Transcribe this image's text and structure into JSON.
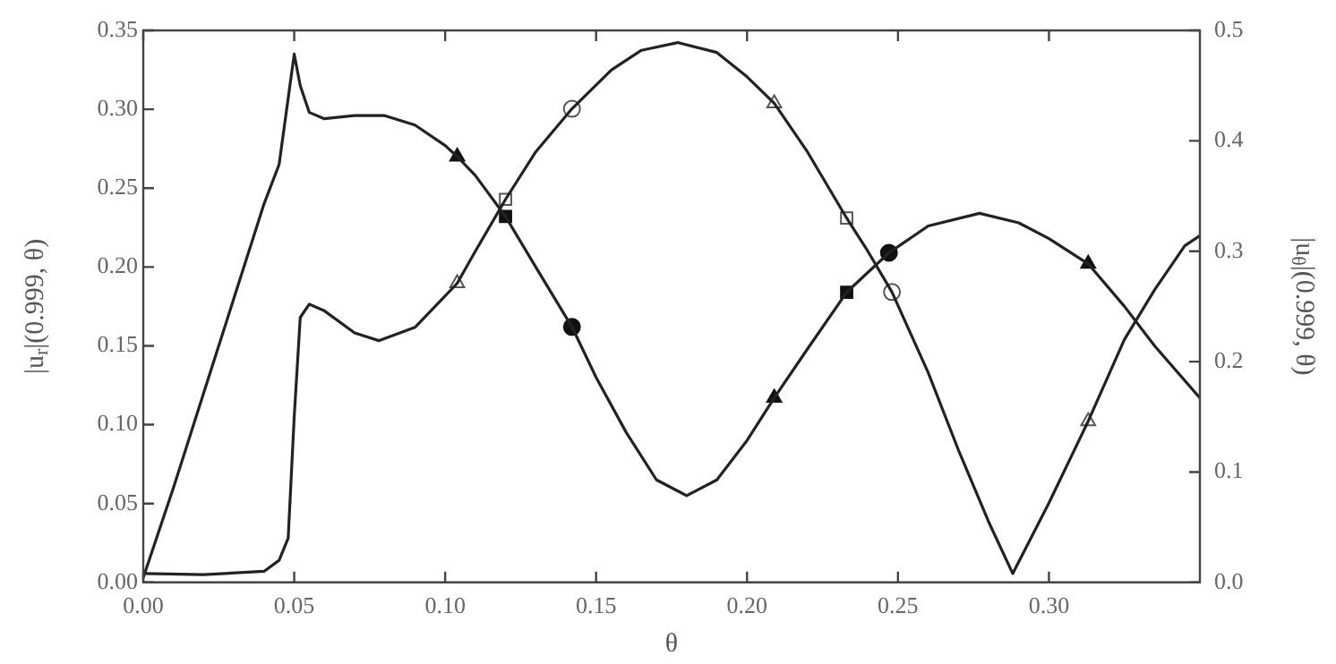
{
  "chart_data": {
    "type": "line",
    "xlabel": "θ",
    "ylabel": "|u$_{r}$|(0.999, θ)",
    "y2label": "|u$_{θ}$|(0.999, θ)",
    "xlim": [
      0,
      0.35
    ],
    "xticks": [
      {
        "value": 0,
        "label": "0.00"
      },
      {
        "value": 0.05,
        "label": "0.05"
      },
      {
        "value": 0.1,
        "label": "0.10"
      },
      {
        "value": 0.15,
        "label": "0.15"
      },
      {
        "value": 0.2,
        "label": "0.20"
      },
      {
        "value": 0.25,
        "label": "0.25"
      },
      {
        "value": 0.3,
        "label": "0.30"
      }
    ],
    "ylim": [
      0,
      0.35
    ],
    "yticks": [
      {
        "value": 0,
        "label": "0.00"
      },
      {
        "value": 0.05,
        "label": "0.05"
      },
      {
        "value": 0.1,
        "label": "0.10"
      },
      {
        "value": 0.15,
        "label": "0.15"
      },
      {
        "value": 0.2,
        "label": "0.20"
      },
      {
        "value": 0.25,
        "label": "0.25"
      },
      {
        "value": 0.3,
        "label": "0.30"
      },
      {
        "value": 0.35,
        "label": "0.35"
      }
    ],
    "y2lim": [
      0,
      0.5
    ],
    "y2ticks": [
      {
        "value": 0,
        "label": "0.0"
      },
      {
        "value": 0.1,
        "label": "0.1"
      },
      {
        "value": 0.2,
        "label": "0.2"
      },
      {
        "value": 0.3,
        "label": "0.3"
      },
      {
        "value": 0.4,
        "label": "0.4"
      },
      {
        "value": 0.5,
        "label": "0.5"
      }
    ],
    "grid": false,
    "legend": false,
    "line_style": "solid",
    "series": [
      {
        "type": "line",
        "color": "#222222",
        "marker": "none",
        "x": [
          0,
          0.01,
          0.02,
          0.03,
          0.04,
          0.045,
          0.05,
          0.052,
          0.055,
          0.06,
          0.07,
          0.08,
          0.09,
          0.1,
          0.104,
          0.11,
          0.12,
          0.13,
          0.142,
          0.15,
          0.16,
          0.17,
          0.18,
          0.19,
          0.2,
          0.209,
          0.22,
          0.233,
          0.247,
          0.26,
          0.277,
          0.29,
          0.3,
          0.313,
          0.325,
          0.335,
          0.35
        ],
        "values": [
          0.003,
          0.06,
          0.12,
          0.18,
          0.24,
          0.265,
          0.335,
          0.315,
          0.298,
          0.294,
          0.296,
          0.296,
          0.29,
          0.277,
          0.27,
          0.258,
          0.232,
          0.2,
          0.162,
          0.13,
          0.095,
          0.065,
          0.055,
          0.065,
          0.09,
          0.117,
          0.148,
          0.184,
          0.209,
          0.226,
          0.234,
          0.228,
          0.218,
          0.202,
          0.175,
          0.15,
          0.117
        ]
      },
      {
        "type": "line",
        "axis": "y2",
        "color": "#222222",
        "marker": "none",
        "x": [
          0,
          0.02,
          0.04,
          0.045,
          0.048,
          0.05,
          0.052,
          0.055,
          0.06,
          0.07,
          0.078,
          0.09,
          0.104,
          0.11,
          0.12,
          0.13,
          0.142,
          0.155,
          0.165,
          0.177,
          0.19,
          0.2,
          0.209,
          0.22,
          0.233,
          0.24,
          0.248,
          0.26,
          0.27,
          0.28,
          0.288,
          0.3,
          0.313,
          0.325,
          0.335,
          0.345,
          0.35
        ],
        "values": [
          0.008,
          0.007,
          0.01,
          0.02,
          0.04,
          0.15,
          0.24,
          0.252,
          0.246,
          0.226,
          0.219,
          0.231,
          0.271,
          0.3,
          0.347,
          0.39,
          0.429,
          0.464,
          0.482,
          0.489,
          0.48,
          0.458,
          0.434,
          0.39,
          0.33,
          0.3,
          0.263,
          0.19,
          0.12,
          0.055,
          0.008,
          0.072,
          0.146,
          0.22,
          0.265,
          0.305,
          0.314
        ]
      },
      {
        "type": "scatter",
        "color": "#111111",
        "marker": "triangle",
        "x": [
          0.104,
          0.209,
          0.313
        ],
        "values": [
          0.27,
          0.117,
          0.202
        ]
      },
      {
        "type": "scatter",
        "color": "#111111",
        "marker": "square",
        "x": [
          0.12,
          0.233
        ],
        "values": [
          0.232,
          0.184
        ]
      },
      {
        "type": "scatter",
        "color": "#111111",
        "marker": "circle",
        "x": [
          0.142,
          0.247
        ],
        "values": [
          0.162,
          0.209
        ]
      },
      {
        "type": "scatter",
        "axis": "y2",
        "color": "#555555",
        "marker": "triangle",
        "x": [
          0.104,
          0.209,
          0.313
        ],
        "values": [
          0.271,
          0.434,
          0.146
        ]
      },
      {
        "type": "scatter",
        "axis": "y2",
        "color": "#555555",
        "marker": "square",
        "x": [
          0.12,
          0.233
        ],
        "values": [
          0.347,
          0.33
        ]
      },
      {
        "type": "scatter",
        "axis": "y2",
        "color": "#555555",
        "marker": "circle",
        "x": [
          0.142,
          0.248
        ],
        "values": [
          0.429,
          0.263
        ]
      }
    ]
  }
}
